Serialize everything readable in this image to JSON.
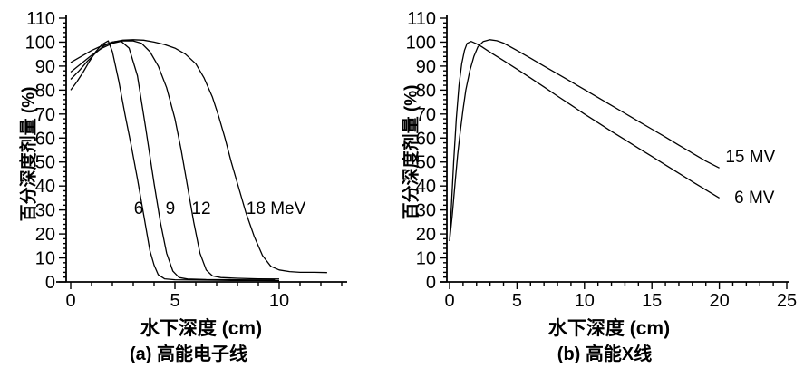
{
  "figure": {
    "background_color": "#ffffff",
    "line_color": "#000000"
  },
  "chart_data": [
    {
      "type": "line",
      "caption": "(a) 高能电子线",
      "x_label": "水下深度 (cm)",
      "y_label": "百分深度剂量 (%)",
      "legend_position": "inline-labels",
      "grid": false,
      "x_axis": {
        "min": 0,
        "max": 13,
        "labeled_ticks": [
          0,
          5,
          10
        ],
        "minor_step": 1,
        "unit": "cm"
      },
      "y_axis": {
        "min": 0,
        "max": 110,
        "labeled_ticks": [
          0,
          10,
          20,
          30,
          40,
          50,
          60,
          70,
          80,
          90,
          100,
          110
        ],
        "minor_step": 2,
        "unit": "%"
      },
      "series": [
        {
          "name": "6 MeV",
          "label": "6",
          "label_at": {
            "x": 3.26,
            "y": 31
          },
          "points": [
            [
              0,
              80
            ],
            [
              0.3,
              83.5
            ],
            [
              0.6,
              87.5
            ],
            [
              0.9,
              92
            ],
            [
              1.2,
              96
            ],
            [
              1.5,
              99
            ],
            [
              1.8,
              100.5
            ],
            [
              2.0,
              96
            ],
            [
              2.3,
              84
            ],
            [
              2.6,
              70
            ],
            [
              2.9,
              57
            ],
            [
              3.2,
              43
            ],
            [
              3.5,
              28
            ],
            [
              3.8,
              13
            ],
            [
              4.0,
              7
            ],
            [
              4.2,
              3
            ],
            [
              4.5,
              1.3
            ],
            [
              5,
              0.9
            ],
            [
              6,
              0.8
            ],
            [
              7,
              0.7
            ],
            [
              8,
              0.6
            ],
            [
              9,
              0.6
            ],
            [
              10,
              0.5
            ]
          ]
        },
        {
          "name": "9 MeV",
          "label": "9",
          "label_at": {
            "x": 4.78,
            "y": 31
          },
          "points": [
            [
              0,
              84.5
            ],
            [
              0.4,
              88
            ],
            [
              0.8,
              92
            ],
            [
              1.2,
              95.5
            ],
            [
              1.6,
              98.5
            ],
            [
              2.0,
              100
            ],
            [
              2.4,
              100.5
            ],
            [
              2.8,
              97.5
            ],
            [
              3.2,
              86
            ],
            [
              3.6,
              64
            ],
            [
              4.0,
              41
            ],
            [
              4.3,
              25
            ],
            [
              4.6,
              12
            ],
            [
              4.9,
              4.5
            ],
            [
              5.2,
              1.8
            ],
            [
              5.6,
              1.2
            ],
            [
              6.5,
              1
            ],
            [
              8,
              0.9
            ],
            [
              9.8,
              0.8
            ]
          ]
        },
        {
          "name": "12 MeV",
          "label": "12",
          "label_at": {
            "x": 6.26,
            "y": 31
          },
          "points": [
            [
              0,
              87.5
            ],
            [
              0.5,
              91
            ],
            [
              1.0,
              94.5
            ],
            [
              1.5,
              97.5
            ],
            [
              2.0,
              99.5
            ],
            [
              2.5,
              100.5
            ],
            [
              3.0,
              100.5
            ],
            [
              3.4,
              99.5
            ],
            [
              3.8,
              96
            ],
            [
              4.2,
              90
            ],
            [
              4.6,
              81
            ],
            [
              5.0,
              68
            ],
            [
              5.3,
              55
            ],
            [
              5.6,
              40
            ],
            [
              5.9,
              25
            ],
            [
              6.2,
              12
            ],
            [
              6.5,
              5
            ],
            [
              6.8,
              2.5
            ],
            [
              7.2,
              1.8
            ],
            [
              8,
              1.5
            ],
            [
              9,
              1.3
            ],
            [
              10,
              1.2
            ]
          ]
        },
        {
          "name": "18 MeV",
          "label": "18 MeV",
          "label_at": {
            "x": 9.85,
            "y": 31
          },
          "points": [
            [
              0,
              91.5
            ],
            [
              0.5,
              94
            ],
            [
              1.0,
              96.5
            ],
            [
              1.5,
              98.5
            ],
            [
              2.0,
              100
            ],
            [
              2.5,
              100.8
            ],
            [
              3.0,
              101
            ],
            [
              3.5,
              100.8
            ],
            [
              4.0,
              100
            ],
            [
              4.5,
              99
            ],
            [
              5.0,
              97.5
            ],
            [
              5.5,
              95
            ],
            [
              6.0,
              91
            ],
            [
              6.4,
              85
            ],
            [
              6.8,
              77
            ],
            [
              7.1,
              69
            ],
            [
              7.4,
              60
            ],
            [
              7.7,
              50
            ],
            [
              8.0,
              41
            ],
            [
              8.4,
              29
            ],
            [
              8.8,
              19
            ],
            [
              9.2,
              11
            ],
            [
              9.6,
              6.5
            ],
            [
              10.0,
              5
            ],
            [
              10.5,
              4.3
            ],
            [
              11.0,
              4
            ],
            [
              11.7,
              4
            ],
            [
              12.3,
              3.9
            ]
          ]
        }
      ]
    },
    {
      "type": "line",
      "caption": "(b) 高能X线",
      "x_label": "水下深度 (cm)",
      "y_label": "百分深度剂量 (%)",
      "legend_position": "inline-labels",
      "grid": false,
      "x_axis": {
        "min": 0,
        "max": 25,
        "labeled_ticks": [
          0,
          5,
          10,
          15,
          20,
          25
        ],
        "minor_step": 1,
        "unit": "cm"
      },
      "y_axis": {
        "min": 0,
        "max": 110,
        "labeled_ticks": [
          0,
          10,
          20,
          30,
          40,
          50,
          60,
          70,
          80,
          90,
          100,
          110
        ],
        "minor_step": 2,
        "unit": "%"
      },
      "series": [
        {
          "name": "15 MV",
          "label": "15 MV",
          "label_at": {
            "x": 22.3,
            "y": 52.5
          },
          "points": [
            [
              0,
              17
            ],
            [
              0.2,
              28
            ],
            [
              0.4,
              41
            ],
            [
              0.6,
              53
            ],
            [
              0.8,
              63
            ],
            [
              1.0,
              72
            ],
            [
              1.2,
              80
            ],
            [
              1.5,
              88
            ],
            [
              1.8,
              94
            ],
            [
              2.1,
              98
            ],
            [
              2.5,
              100.3
            ],
            [
              3.0,
              101
            ],
            [
              3.5,
              100.6
            ],
            [
              4.0,
              99.6
            ],
            [
              5,
              96.5
            ],
            [
              6,
              93.3
            ],
            [
              7,
              90
            ],
            [
              8,
              86.8
            ],
            [
              9,
              83.5
            ],
            [
              10,
              80.2
            ],
            [
              11,
              76.9
            ],
            [
              12,
              73.6
            ],
            [
              13,
              70.3
            ],
            [
              14,
              67
            ],
            [
              15,
              63.7
            ],
            [
              16,
              60.4
            ],
            [
              17,
              57
            ],
            [
              18,
              53.7
            ],
            [
              19,
              50.4
            ],
            [
              20,
              47.5
            ]
          ]
        },
        {
          "name": "6 MV",
          "label": "6 MV",
          "label_at": {
            "x": 22.6,
            "y": 35.5
          },
          "points": [
            [
              0,
              17
            ],
            [
              0.15,
              33
            ],
            [
              0.3,
              50
            ],
            [
              0.5,
              68
            ],
            [
              0.7,
              82
            ],
            [
              0.9,
              91
            ],
            [
              1.1,
              96.5
            ],
            [
              1.3,
              99.5
            ],
            [
              1.6,
              100.3
            ],
            [
              2.0,
              99.3
            ],
            [
              2.4,
              98
            ],
            [
              3.0,
              95.8
            ],
            [
              4,
              92.3
            ],
            [
              5,
              88.7
            ],
            [
              6,
              85
            ],
            [
              7,
              81.3
            ],
            [
              8,
              77.5
            ],
            [
              9,
              73.8
            ],
            [
              10,
              70
            ],
            [
              11,
              66.4
            ],
            [
              12,
              62.8
            ],
            [
              13,
              59.3
            ],
            [
              14,
              55.8
            ],
            [
              15,
              52.3
            ],
            [
              16,
              48.8
            ],
            [
              17,
              45.3
            ],
            [
              18,
              41.8
            ],
            [
              19,
              38.4
            ],
            [
              20,
              35
            ]
          ]
        }
      ]
    }
  ]
}
